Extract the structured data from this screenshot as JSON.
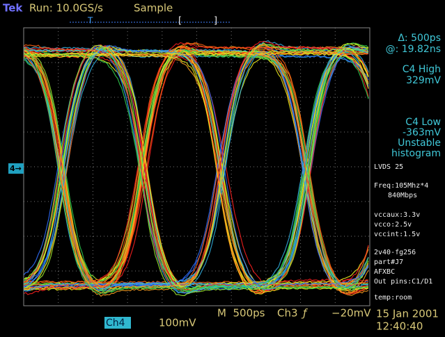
{
  "header": {
    "brand": "Tek",
    "acquisition": "Run: 10.0GS/s",
    "mode": "Sample",
    "trigger_marker": "T",
    "gate_start": "[",
    "gate_end": "]"
  },
  "channel_marker": "4→",
  "measurements": [
    "Δ: 500ps",
    "@: 19.82ns",
    "C4 High",
    "329mV",
    "C4 Low",
    "-363mV",
    "Unstable",
    "histogram"
  ],
  "notes": [
    "LVDS 25",
    "Freq:105Mhz*4",
    "840Mbps",
    "vccaux:3.3v",
    "vcco:2.5v",
    "vccint:1.5v",
    "2v40-fg256",
    "part#J7",
    "AFXBC",
    "Out pins:C1/D1",
    "temp:room"
  ],
  "footer": {
    "channel": "Ch4",
    "scale": "100mV",
    "timebase": "M  500ps",
    "trigger_source": "Ch3",
    "trigger_slope": "ƒ",
    "trigger_level": "−20mV",
    "date": "15 Jan 2001",
    "time": "12:40:40"
  }
}
